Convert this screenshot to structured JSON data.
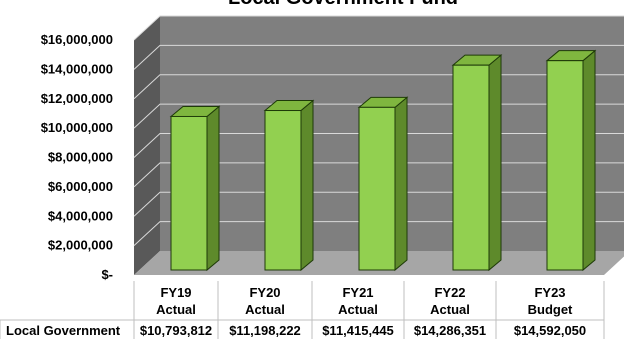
{
  "chart_data": {
    "type": "bar",
    "title": "Local Government Fund",
    "categories": [
      [
        "FY19",
        "Actual"
      ],
      [
        "FY20",
        "Actual"
      ],
      [
        "FY21",
        "Actual"
      ],
      [
        "FY22",
        "Actual"
      ],
      [
        "FY23",
        "Budget"
      ]
    ],
    "series": [
      {
        "name": "Local Government",
        "values": [
          10793812,
          11198222,
          11415445,
          14286351,
          14592050
        ],
        "value_labels": [
          "$10,793,812",
          "$11,198,222",
          "$11,415,445",
          "$14,286,351",
          "$14,592,050"
        ]
      }
    ],
    "ylim": [
      0,
      16000000
    ],
    "yticks": [
      0,
      2000000,
      4000000,
      6000000,
      8000000,
      10000000,
      12000000,
      14000000,
      16000000
    ],
    "ytick_labels": [
      "$-",
      "$2,000,000",
      "$4,000,000",
      "$6,000,000",
      "$8,000,000",
      "$10,000,000",
      "$12,000,000",
      "$14,000,000",
      "$16,000,000"
    ],
    "grid": true,
    "style": "3d-bar",
    "colors": {
      "bar_front": "#92d050",
      "bar_side": "#5e8a2b",
      "bar_top": "#7fb63f",
      "bar_outline": "#1e3a08",
      "back_wall": "#7f7f7f",
      "side_wall": "#595959",
      "floor": "#a6a6a6",
      "gridline": "#d9d9d9"
    }
  }
}
